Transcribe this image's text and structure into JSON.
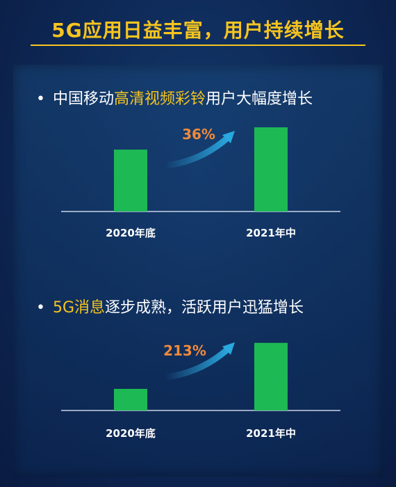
{
  "title": "5G应用日益丰富，用户持续增长",
  "sections": [
    {
      "bullet": "•",
      "text_before": "中国移动",
      "highlight": "高清视频彩铃",
      "text_after": "用户大幅度增长"
    },
    {
      "bullet": "•",
      "text_before": "",
      "highlight": "5G消息",
      "text_after": "逐步成熟，活跃用户迅猛增长"
    }
  ],
  "chart_data": [
    {
      "type": "bar",
      "categories": [
        "2020年底",
        "2021年中"
      ],
      "values": [
        1,
        1.36
      ],
      "growth_label": "36%",
      "ylim": [
        0,
        1.45
      ],
      "bar_color": "#1db954",
      "arrow_color": "#2aa8e0",
      "growth_color": "#f08a3a"
    },
    {
      "type": "bar",
      "categories": [
        "2020年底",
        "2021年中"
      ],
      "values": [
        1,
        3.13
      ],
      "growth_label": "213%",
      "ylim": [
        0,
        3.8
      ],
      "bar_color": "#1db954",
      "arrow_color": "#2aa8e0",
      "growth_color": "#f08a3a"
    }
  ]
}
